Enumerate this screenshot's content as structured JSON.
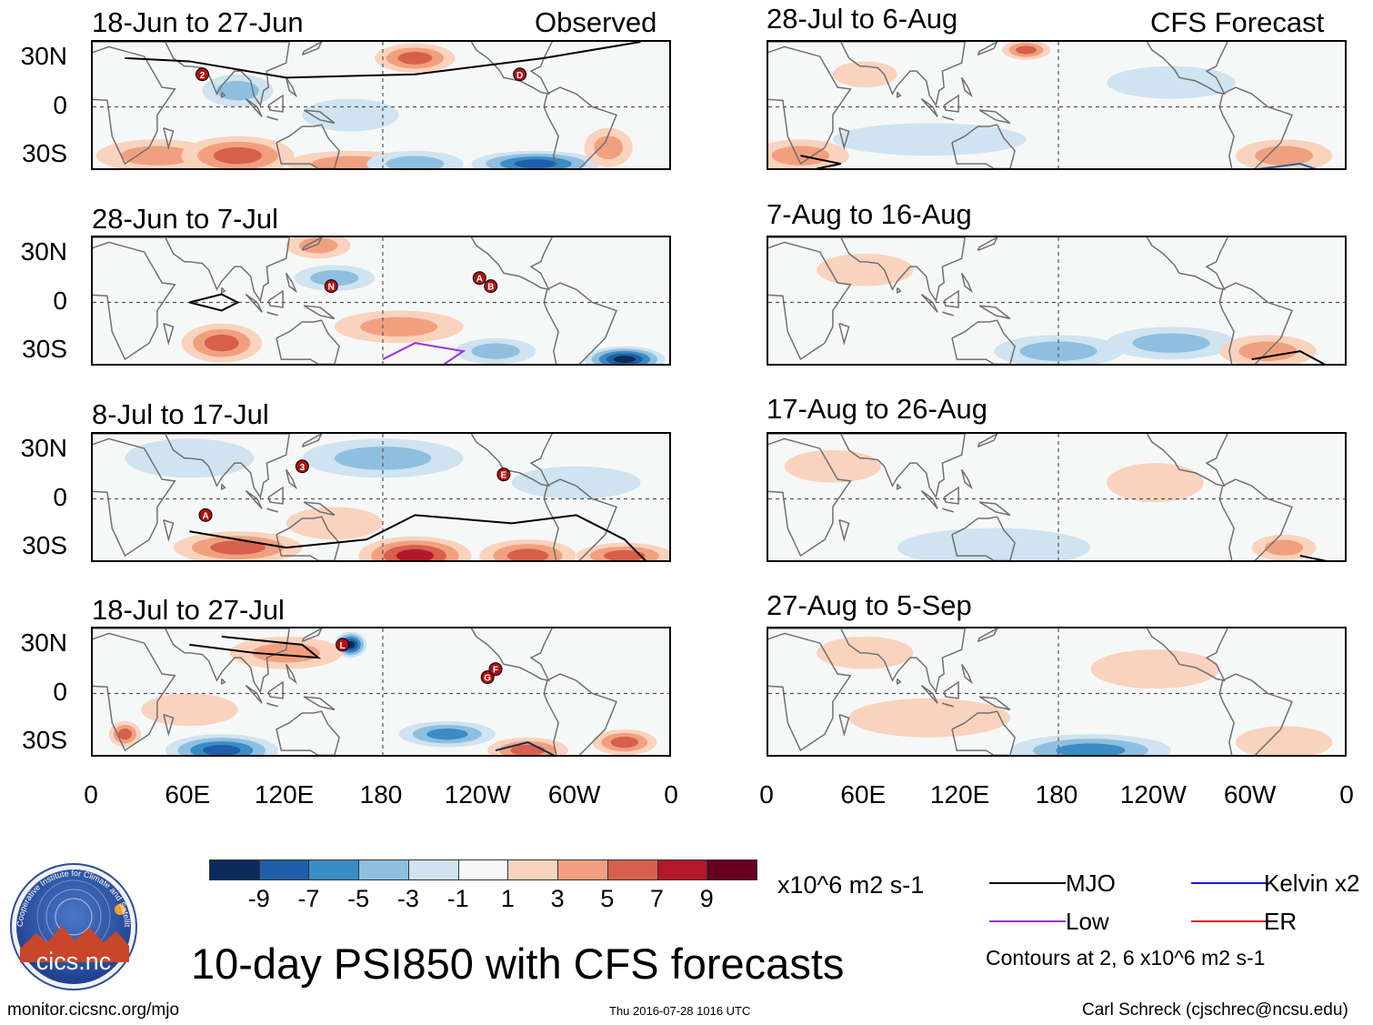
{
  "header": {
    "left_label": "Observed",
    "right_label": "CFS Forecast"
  },
  "chart_data": {
    "type": "heatmap",
    "title": "10-day PSI850 with CFS forecasts",
    "variable": "PSI850 anomaly",
    "units": "x10^6 m2 s-1",
    "x_axis": {
      "range": [
        0,
        360
      ],
      "ticks": [
        "0",
        "60E",
        "120E",
        "180",
        "120W",
        "60W",
        "0"
      ]
    },
    "y_axis": {
      "range": [
        -40,
        40
      ],
      "ticks": [
        "30N",
        "0",
        "30S"
      ]
    },
    "colorbar": {
      "levels": [
        -9,
        -7,
        -5,
        -3,
        -1,
        1,
        3,
        5,
        7,
        9
      ],
      "tick_labels": [
        "-9",
        "-7",
        "-5",
        "-3",
        "-1",
        "1",
        "3",
        "5",
        "7",
        "9"
      ],
      "colors": [
        "#0b2a5b",
        "#1f5ea8",
        "#3a8cc4",
        "#8fbfdf",
        "#cfe3f0",
        "#f7f7f7",
        "#f9d3bd",
        "#f1a07f",
        "#d6604d",
        "#b2182b",
        "#67001f"
      ]
    },
    "observed_panels": [
      {
        "title": "18-Jun to 27-Jun",
        "markers": [
          "2",
          "D"
        ]
      },
      {
        "title": "28-Jun to 7-Jul",
        "markers": [
          "N",
          "A",
          "B"
        ]
      },
      {
        "title": "8-Jul to 17-Jul",
        "markers": [
          "3",
          "E",
          "A"
        ]
      },
      {
        "title": "18-Jul to 27-Jul",
        "markers": [
          "L",
          "G",
          "F"
        ]
      }
    ],
    "forecast_panels": [
      {
        "title": "28-Jul to 6-Aug"
      },
      {
        "title": "7-Aug to 16-Aug"
      },
      {
        "title": "17-Aug to 26-Aug"
      },
      {
        "title": "27-Aug to 5-Sep"
      }
    ],
    "contour_legend": [
      {
        "label": "MJO",
        "color": "#000000"
      },
      {
        "label": "Kelvin x2",
        "color": "#1a1ad6"
      },
      {
        "label": "Low",
        "color": "#9b30d9"
      },
      {
        "label": "ER",
        "color": "#e01818"
      }
    ],
    "contour_note": "Contours at 2, 6 x10^6 m2 s-1"
  },
  "logo": {
    "text": "cics.nc",
    "ring_text": "Cooperative Institute for Climate and Satellites"
  },
  "footer": {
    "left": "monitor.cicsnc.org/mjo",
    "center": "Thu 2016-07-28 1016 UTC",
    "right": "Carl Schreck (cjschrec@ncsu.edu)"
  }
}
